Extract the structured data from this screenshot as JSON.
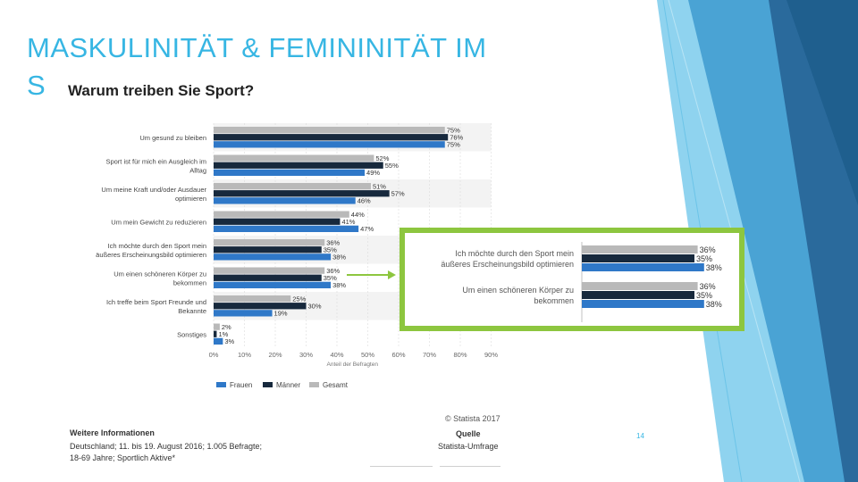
{
  "slide": {
    "title_line1": "MASKULINITÄT & FEMININITÄT IM",
    "title_line2": "S",
    "page_number": "14",
    "colors": {
      "accent": "#37b6e3",
      "zoom_border": "#8dc63f"
    }
  },
  "chart_data": {
    "type": "bar",
    "orientation": "horizontal",
    "title": "Warum treiben Sie Sport?",
    "xlabel": "Anteil der Befragten",
    "xlim": [
      0,
      90
    ],
    "xticks": [
      "0%",
      "10%",
      "20%",
      "30%",
      "40%",
      "50%",
      "60%",
      "70%",
      "80%",
      "90%"
    ],
    "legend_position": "bottom",
    "categories": [
      [
        "Um gesund zu bleiben"
      ],
      [
        "Sport ist für mich ein Ausgleich im",
        "Alltag"
      ],
      [
        "Um meine Kraft und/oder Ausdauer",
        "optimieren"
      ],
      [
        "Um mein Gewicht zu reduzieren"
      ],
      [
        "Ich möchte durch den Sport mein",
        "äußeres Erscheinungsbild optimieren"
      ],
      [
        "Um einen schöneren Körper zu",
        "bekommen"
      ],
      [
        "Ich treffe beim Sport Freunde und",
        "Bekannte"
      ],
      [
        "Sonstiges"
      ]
    ],
    "series": [
      {
        "name": "Gesamt",
        "color": "#b9b9b9",
        "values": [
          75,
          52,
          51,
          44,
          36,
          36,
          25,
          2
        ],
        "labels": [
          "75%",
          "52%",
          "51%",
          "44%",
          "36%",
          "36%",
          "25%",
          "2%"
        ]
      },
      {
        "name": "Männer",
        "color": "#17293d",
        "values": [
          76,
          55,
          57,
          41,
          35,
          35,
          30,
          1
        ],
        "labels": [
          "76%",
          "55%",
          "57%",
          "41%",
          "35%",
          "35%",
          "30%",
          "1%"
        ]
      },
      {
        "name": "Frauen",
        "color": "#2f78c8",
        "values": [
          75,
          49,
          46,
          47,
          38,
          38,
          19,
          3
        ],
        "labels": [
          "75%",
          "49%",
          "46%",
          "47%",
          "38%",
          "38%",
          "19%",
          "3%"
        ]
      }
    ],
    "legend": [
      "Frauen",
      "Männer",
      "Gesamt"
    ],
    "zoom": {
      "categories": [
        [
          "Ich möchte durch den Sport mein",
          "äußeres Erscheinungsbild optimieren"
        ],
        [
          "Um einen schöneren Körper zu",
          "bekommen"
        ]
      ],
      "values": [
        [
          36,
          35,
          38
        ],
        [
          36,
          35,
          38
        ]
      ],
      "labels": [
        [
          "36%",
          "35%",
          "38%"
        ],
        [
          "36%",
          "35%",
          "38%"
        ]
      ]
    }
  },
  "footer": {
    "copyright": "© Statista 2017",
    "info_heading": "Weitere Informationen",
    "info_line1": "Deutschland; 11. bis 19. August 2016; 1.005 Befragte;",
    "info_line2": "18-69 Jahre; Sportlich Aktive*",
    "source_heading": "Quelle",
    "source_line": "Statista-Umfrage"
  }
}
